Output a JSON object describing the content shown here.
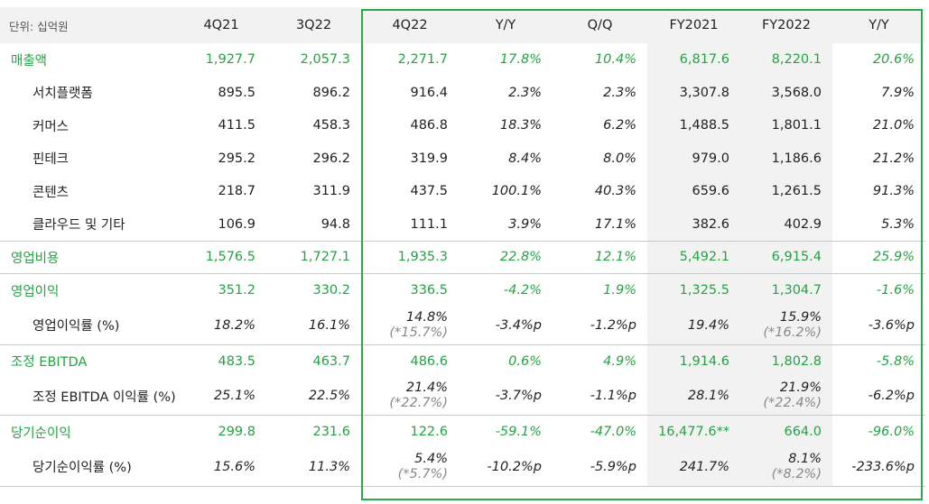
{
  "header": {
    "unit": "단위: 십억원",
    "cols": [
      "4Q21",
      "3Q22",
      "4Q22",
      "Y/Y",
      "Q/Q",
      "FY2021",
      "FY2022",
      "Y/Y"
    ]
  },
  "rows": [
    {
      "label": "매출액",
      "type": "main",
      "v": [
        "1,927.7",
        "2,057.3",
        "2,271.7",
        "17.8%",
        "10.4%",
        "6,817.6",
        "8,220.1",
        "20.6%"
      ]
    },
    {
      "label": "서치플랫폼",
      "type": "sub",
      "v": [
        "895.5",
        "896.2",
        "916.4",
        "2.3%",
        "2.3%",
        "3,307.8",
        "3,568.0",
        "7.9%"
      ]
    },
    {
      "label": "커머스",
      "type": "sub",
      "v": [
        "411.5",
        "458.3",
        "486.8",
        "18.3%",
        "6.2%",
        "1,488.5",
        "1,801.1",
        "21.0%"
      ]
    },
    {
      "label": "핀테크",
      "type": "sub",
      "v": [
        "295.2",
        "296.2",
        "319.9",
        "8.4%",
        "8.0%",
        "979.0",
        "1,186.6",
        "21.2%"
      ]
    },
    {
      "label": "콘텐츠",
      "type": "sub",
      "v": [
        "218.7",
        "311.9",
        "437.5",
        "100.1%",
        "40.3%",
        "659.6",
        "1,261.5",
        "91.3%"
      ]
    },
    {
      "label": "클라우드 및 기타",
      "type": "sub",
      "v": [
        "106.9",
        "94.8",
        "111.1",
        "3.9%",
        "17.1%",
        "382.6",
        "402.9",
        "5.3%"
      ]
    },
    {
      "label": "영업비용",
      "type": "main",
      "v": [
        "1,576.5",
        "1,727.1",
        "1,935.3",
        "22.8%",
        "12.1%",
        "5,492.1",
        "6,915.4",
        "25.9%"
      ]
    },
    {
      "label": "영업이익",
      "type": "main",
      "v": [
        "351.2",
        "330.2",
        "336.5",
        "-4.2%",
        "1.9%",
        "1,325.5",
        "1,304.7",
        "-1.6%"
      ]
    },
    {
      "label": "영업이익률 (%)",
      "type": "ratio",
      "v": [
        "18.2%",
        "16.1%",
        "14.8%",
        "-3.4%p",
        "-1.2%p",
        "19.4%",
        "15.9%",
        "-3.6%p"
      ],
      "alt": {
        "2": "(*15.7%)",
        "6": "(*16.2%)"
      }
    },
    {
      "label": "조정 EBITDA",
      "type": "main",
      "v": [
        "483.5",
        "463.7",
        "486.6",
        "0.6%",
        "4.9%",
        "1,914.6",
        "1,802.8",
        "-5.8%"
      ]
    },
    {
      "label": "조정 EBITDA 이익률 (%)",
      "type": "ratio",
      "v": [
        "25.1%",
        "22.5%",
        "21.4%",
        "-3.7%p",
        "-1.1%p",
        "28.1%",
        "21.9%",
        "-6.2%p"
      ],
      "alt": {
        "2": "(*22.7%)",
        "6": "(*22.4%)"
      }
    },
    {
      "label": "당기순이익",
      "type": "main",
      "v": [
        "299.8",
        "231.6",
        "122.6",
        "-59.1%",
        "-47.0%",
        "16,477.6**",
        "664.0",
        "-96.0%"
      ]
    },
    {
      "label": "당기순이익률 (%)",
      "type": "ratio",
      "v": [
        "15.6%",
        "11.3%",
        "5.4%",
        "-10.2%p",
        "-5.9%p",
        "241.7%",
        "8.1%",
        "-233.6%p"
      ],
      "alt": {
        "2": "(*5.7%)",
        "6": "(*8.2%)"
      }
    }
  ],
  "colors": {
    "accent": "#25a244",
    "box": "#2ba84a",
    "header_bg": "#f2f2f2"
  }
}
